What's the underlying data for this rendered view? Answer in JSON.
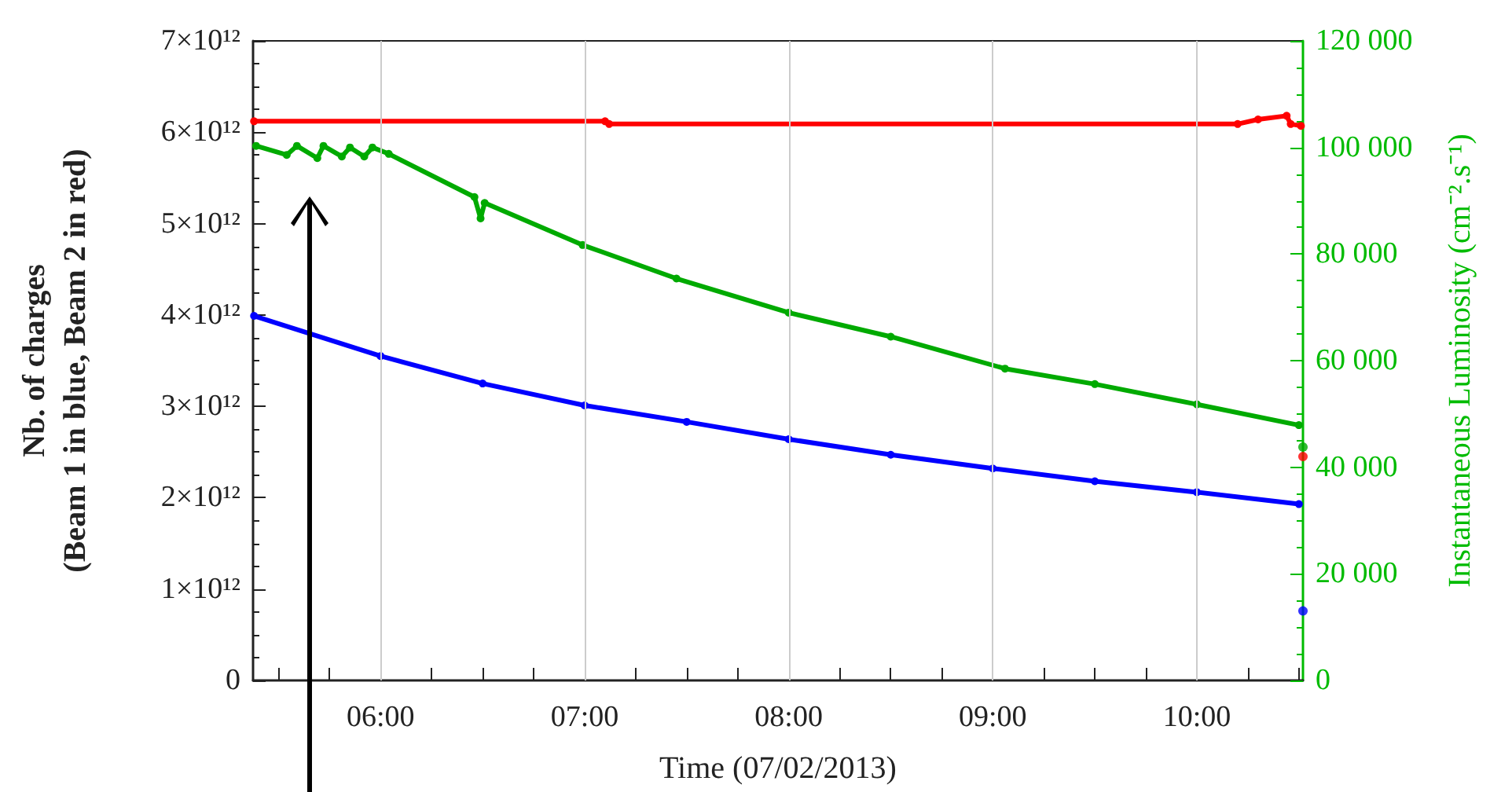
{
  "chart_data": {
    "type": "line",
    "xlabel": "Time (07/02/2013)",
    "ylabel": "Nb. of charges\n(Beam 1 in blue, Beam 2 in red)",
    "y2label": "Instantaneous Luminosity (cm⁻².s⁻¹)",
    "xlim": [
      5.375,
      10.52
    ],
    "xticks": [
      {
        "value": 5.5,
        "label": null
      },
      {
        "value": 5.75,
        "label": null
      },
      {
        "value": 6,
        "label": "06:00"
      },
      {
        "value": 6.25,
        "label": null
      },
      {
        "value": 6.5,
        "label": null
      },
      {
        "value": 6.75,
        "label": null
      },
      {
        "value": 7,
        "label": "07:00"
      },
      {
        "value": 7.25,
        "label": null
      },
      {
        "value": 7.5,
        "label": null
      },
      {
        "value": 7.75,
        "label": null
      },
      {
        "value": 8,
        "label": "08:00"
      },
      {
        "value": 8.25,
        "label": null
      },
      {
        "value": 8.5,
        "label": null
      },
      {
        "value": 8.75,
        "label": null
      },
      {
        "value": 9,
        "label": "09:00"
      },
      {
        "value": 9.25,
        "label": null
      },
      {
        "value": 9.5,
        "label": null
      },
      {
        "value": 9.75,
        "label": null
      },
      {
        "value": 10,
        "label": "10:00"
      },
      {
        "value": 10.25,
        "label": null
      },
      {
        "value": 10.5,
        "label": null
      }
    ],
    "ylim": [
      0,
      7000000000000.0
    ],
    "yticks": [
      0,
      {
        "value": 1000000000000.0,
        "label": "1×10¹²"
      },
      {
        "value": 2000000000000.0,
        "label": "2×10¹²"
      },
      {
        "value": 3000000000000.0,
        "label": "3×10¹²"
      },
      {
        "value": 4000000000000.0,
        "label": "4×10¹²"
      },
      {
        "value": 5000000000000.0,
        "label": "5×10¹²"
      },
      {
        "value": 6000000000000.0,
        "label": "6×10¹²"
      },
      {
        "value": 7000000000000.0,
        "label": "7×10¹²"
      }
    ],
    "y2lim": [
      0,
      120000
    ],
    "y2ticks": [
      0,
      {
        "value": 20000,
        "label": "20 000"
      },
      {
        "value": 40000,
        "label": "40 000"
      },
      {
        "value": 60000,
        "label": "60 000"
      },
      {
        "value": 80000,
        "label": "80 000"
      },
      {
        "value": 100000,
        "label": "100 000"
      },
      {
        "value": 120000,
        "label": "120 000"
      }
    ],
    "grid": "x",
    "marker": "circle",
    "line_style": "solid",
    "series": [
      {
        "color": "#0000ff",
        "x": [
          5.38,
          6.0,
          6.5,
          7.0,
          7.5,
          8.0,
          8.5,
          9.0,
          9.5,
          10.0,
          10.5
        ],
        "values": [
          3990000000000.0,
          3550000000000.0,
          3250000000000.0,
          3010000000000.0,
          2830000000000.0,
          2640000000000.0,
          2470000000000.0,
          2320000000000.0,
          2180000000000.0,
          2060000000000.0,
          1930000000000.0
        ]
      },
      {
        "color": "#ff0000",
        "x": [
          5.38,
          7.1,
          7.12,
          10.2,
          10.3,
          10.44,
          10.46,
          10.51
        ],
        "values": [
          6120000000000.0,
          6120000000000.0,
          6090000000000.0,
          6090000000000.0,
          6140000000000.0,
          6180000000000.0,
          6090000000000.0,
          6070000000000.0
        ]
      },
      {
        "color": "#00aa00",
        "axis": "y2",
        "x": [
          5.39,
          5.54,
          5.59,
          5.69,
          5.72,
          5.81,
          5.85,
          5.92,
          5.96,
          6.04,
          6.46,
          6.49,
          6.51,
          6.99,
          7.45,
          8.0,
          8.5,
          9.06,
          9.5,
          10.0,
          10.5
        ],
        "values": [
          100300,
          98600,
          100300,
          98000,
          100300,
          98300,
          100000,
          98300,
          100000,
          98800,
          90700,
          86700,
          89600,
          81700,
          75400,
          69000,
          64500,
          58500,
          55600,
          51800,
          47900
        ]
      },
      {
        "type": "scatter",
        "color": "#0000ff",
        "x": [
          10.52
        ],
        "values": [
          760000000000.0
        ]
      },
      {
        "type": "scatter",
        "color": "#ff0000",
        "x": [
          10.52
        ],
        "values": [
          2450000000000.0
        ]
      },
      {
        "type": "scatter",
        "color": "#00aa00",
        "axis": "y2",
        "x": [
          10.52
        ],
        "values": [
          43800
        ]
      }
    ]
  }
}
